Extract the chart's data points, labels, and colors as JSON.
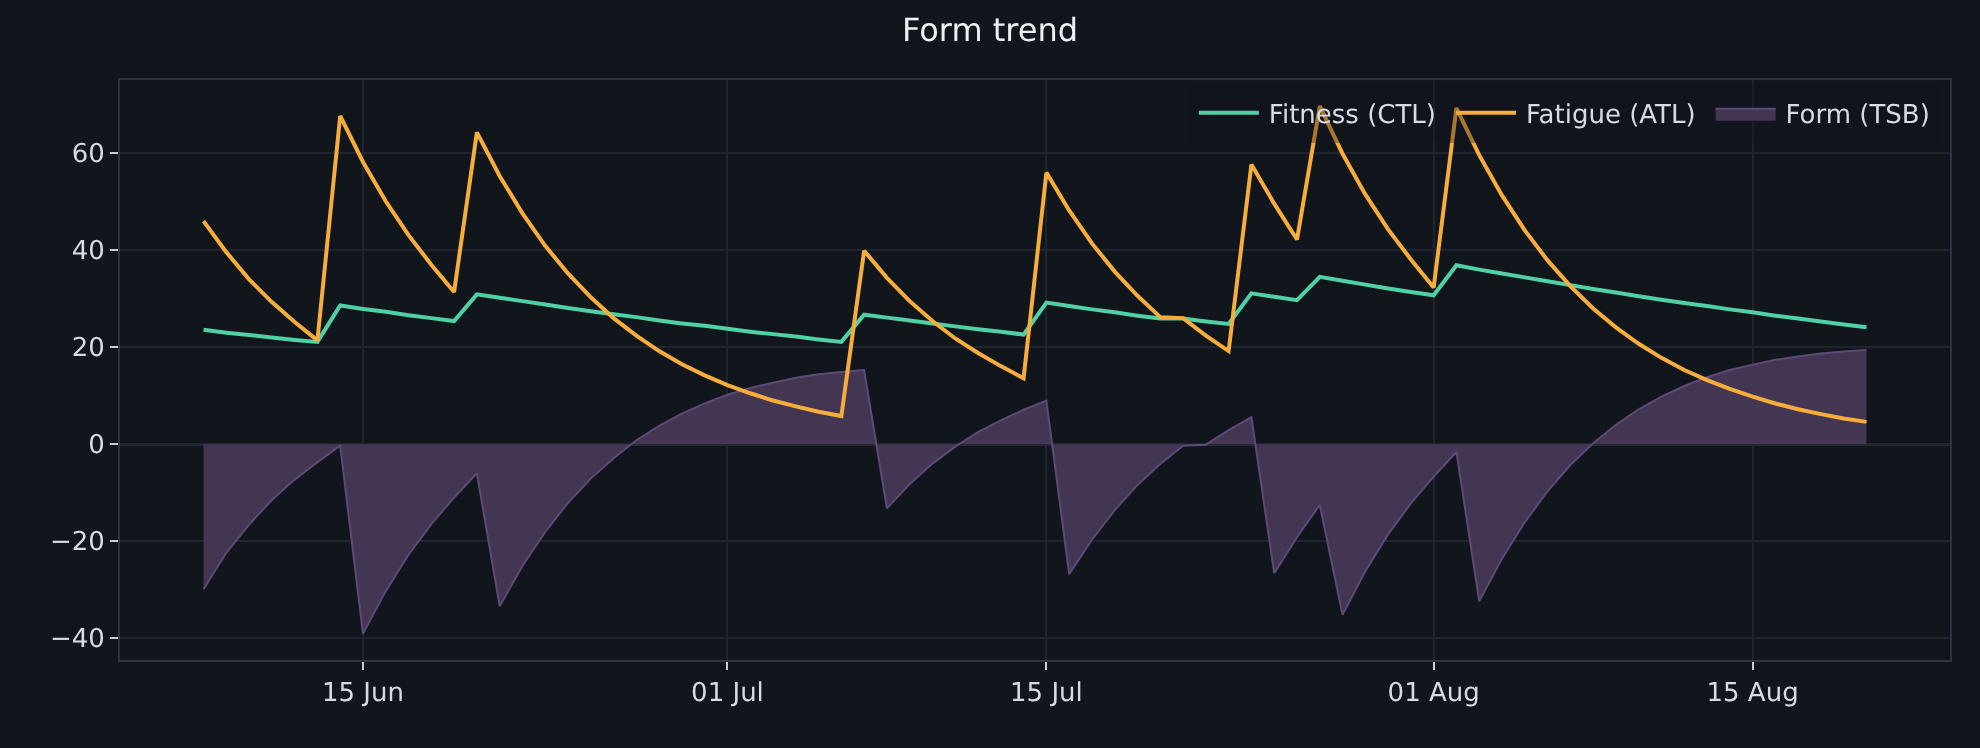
{
  "chart_data": {
    "type": "line",
    "title": "Form trend",
    "x": [
      "--06-08",
      "--06-09",
      "--06-10",
      "--06-11",
      "--06-12",
      "--06-13",
      "--06-14",
      "--06-15",
      "--06-16",
      "--06-17",
      "--06-18",
      "--06-19",
      "--06-20",
      "--06-21",
      "--06-22",
      "--06-23",
      "--06-24",
      "--06-25",
      "--06-26",
      "--06-27",
      "--06-28",
      "--06-29",
      "--06-30",
      "--07-01",
      "--07-02",
      "--07-03",
      "--07-04",
      "--07-05",
      "--07-06",
      "--07-07",
      "--07-08",
      "--07-09",
      "--07-10",
      "--07-11",
      "--07-12",
      "--07-13",
      "--07-14",
      "--07-15",
      "--07-16",
      "--07-17",
      "--07-18",
      "--07-19",
      "--07-20",
      "--07-21",
      "--07-22",
      "--07-23",
      "--07-24",
      "--07-25",
      "--07-26",
      "--07-27",
      "--07-28",
      "--07-29",
      "--07-30",
      "--07-31",
      "--08-01",
      "--08-02",
      "--08-03",
      "--08-04",
      "--08-05",
      "--08-06",
      "--08-07",
      "--08-08",
      "--08-09",
      "--08-10",
      "--08-11",
      "--08-12",
      "--08-13",
      "--08-14",
      "--08-15",
      "--08-16",
      "--08-17",
      "--08-18",
      "--08-19",
      "--08-20"
    ],
    "series": [
      {
        "name": "Fitness (CTL)",
        "color": "#4fd1a5",
        "values": [
          23.6,
          23.0,
          22.5,
          22.0,
          21.5,
          21.1,
          28.6,
          27.9,
          27.3,
          26.6,
          26.0,
          25.4,
          30.9,
          30.2,
          29.5,
          28.8,
          28.1,
          27.4,
          26.8,
          26.2,
          25.5,
          24.9,
          24.4,
          23.8,
          23.2,
          22.7,
          22.2,
          21.6,
          21.1,
          26.7,
          26.1,
          25.5,
          24.9,
          24.3,
          23.7,
          23.2,
          22.6,
          29.2,
          28.5,
          27.8,
          27.2,
          26.5,
          25.9,
          25.9,
          25.3,
          24.8,
          31.1,
          30.4,
          29.7,
          34.5,
          33.7,
          32.9,
          32.1,
          31.4,
          30.7,
          36.9,
          36.0,
          35.2,
          34.4,
          33.6,
          32.8,
          32.0,
          31.3,
          30.5,
          29.8,
          29.1,
          28.5,
          27.8,
          27.2,
          26.5,
          25.9,
          25.3,
          24.7,
          24.1
        ]
      },
      {
        "name": "Fatigue (ATL)",
        "color": "#f6ad3c",
        "values": [
          46.0,
          39.6,
          34.0,
          29.3,
          25.2,
          21.4,
          67.7,
          58.2,
          50.1,
          43.1,
          37.0,
          31.4,
          64.3,
          55.3,
          47.6,
          40.9,
          35.2,
          30.3,
          26.0,
          22.4,
          19.2,
          16.5,
          14.2,
          12.2,
          10.5,
          9.0,
          7.8,
          6.7,
          5.8,
          39.9,
          34.3,
          29.5,
          25.4,
          21.8,
          18.8,
          16.1,
          13.6,
          56.0,
          48.2,
          41.4,
          35.6,
          30.6,
          26.2,
          26.0,
          22.4,
          19.2,
          57.7,
          49.6,
          42.2,
          69.7,
          59.9,
          51.5,
          44.3,
          38.1,
          32.3,
          69.3,
          59.6,
          51.3,
          44.1,
          37.9,
          32.6,
          28.0,
          24.1,
          20.7,
          17.8,
          15.3,
          13.2,
          11.4,
          9.8,
          8.4,
          7.2,
          6.2,
          5.3,
          4.6
        ]
      },
      {
        "name": "Form (TSB)",
        "color": "#433652",
        "type": "area",
        "values": [
          -29.9,
          -22.4,
          -16.6,
          -11.5,
          -7.3,
          -3.7,
          -0.3,
          -39.1,
          -30.3,
          -22.8,
          -16.5,
          -11.0,
          -6.0,
          -33.4,
          -25.1,
          -18.1,
          -12.1,
          -7.1,
          -2.9,
          0.8,
          3.8,
          6.3,
          8.4,
          10.2,
          11.6,
          12.7,
          13.7,
          14.4,
          14.9,
          15.3,
          -13.2,
          -8.2,
          -4.0,
          -0.5,
          2.5,
          4.9,
          7.1,
          9.0,
          -26.8,
          -19.7,
          -13.6,
          -8.4,
          -4.1,
          -0.3,
          -0.1,
          2.9,
          5.6,
          -26.6,
          -19.2,
          -12.5,
          -35.2,
          -26.2,
          -18.6,
          -12.2,
          -6.7,
          -1.6,
          -32.4,
          -23.6,
          -16.1,
          -9.7,
          -4.3,
          0.2,
          4.0,
          7.2,
          9.8,
          12.0,
          13.8,
          15.3,
          16.4,
          17.4,
          18.1,
          18.7,
          19.1,
          19.4
        ]
      }
    ],
    "xlim": [
      "--06-04T08:00",
      "--08-23T16:00"
    ],
    "xticks": [
      {
        "value": "--06-15",
        "label": "15 Jun"
      },
      {
        "value": "--07-01",
        "label": "01 Jul"
      },
      {
        "value": "--07-15",
        "label": "15 Jul"
      },
      {
        "value": "--08-01",
        "label": "01 Aug"
      },
      {
        "value": "--08-15",
        "label": "15 Aug"
      }
    ],
    "ylim": [
      -44.5,
      75.1
    ],
    "yticks": [
      {
        "value": -40,
        "label": "−40"
      },
      {
        "value": -20,
        "label": "−20"
      },
      0,
      20,
      40,
      60
    ],
    "ref_lines": [
      {
        "axis": "y",
        "value": 0,
        "color": "#3a3e4c"
      }
    ],
    "grid": true,
    "legend": "top right",
    "marker": "none",
    "line_style": "solid"
  }
}
